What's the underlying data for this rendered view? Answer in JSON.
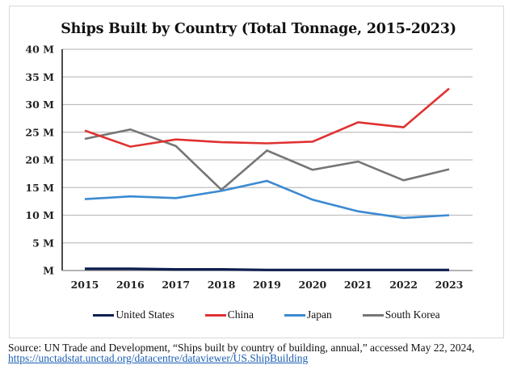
{
  "chart_data": {
    "type": "line",
    "title": "Ships Built by Country (Total Tonnage, 2015-2023)",
    "xlabel": "",
    "ylabel": "",
    "x": [
      "2015",
      "2016",
      "2017",
      "2018",
      "2019",
      "2020",
      "2021",
      "2022",
      "2023"
    ],
    "ylim": [
      0,
      40
    ],
    "yticks": [
      0,
      5,
      10,
      15,
      20,
      25,
      30,
      35,
      40
    ],
    "ytick_labels": [
      "M",
      "5 M",
      "10 M",
      "15 M",
      "20 M",
      "25 M",
      "30 M",
      "35 M",
      "40 M"
    ],
    "grid": true,
    "legend_position": "bottom",
    "series": [
      {
        "name": "United States",
        "color": "#0d1f4f",
        "values": [
          0.3,
          0.3,
          0.2,
          0.2,
          0.1,
          0.1,
          0.1,
          0.1,
          0.1
        ]
      },
      {
        "name": "China",
        "color": "#e03131",
        "values": [
          25.3,
          22.4,
          23.7,
          23.2,
          23.0,
          23.3,
          26.8,
          25.9,
          32.9
        ]
      },
      {
        "name": "Japan",
        "color": "#3b8ad2",
        "values": [
          12.9,
          13.4,
          13.1,
          14.4,
          16.2,
          12.8,
          10.7,
          9.5,
          10.0
        ]
      },
      {
        "name": "South Korea",
        "color": "#767676",
        "values": [
          23.8,
          25.5,
          22.5,
          14.6,
          21.7,
          18.2,
          19.7,
          16.3,
          18.3
        ]
      }
    ]
  },
  "source": {
    "text": "Source: UN Trade and Development, “Ships built by country of building, annual,” accessed May 22, 2024,",
    "link": "https://unctadstat.unctad.org/datacentre/dataviewer/US.ShipBuilding"
  }
}
